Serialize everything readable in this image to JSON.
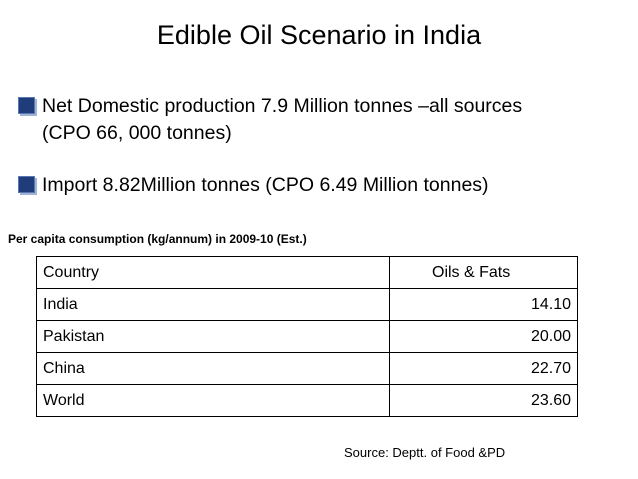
{
  "title": "Edible Oil Scenario in India",
  "bullets": [
    {
      "icon": "square-bullet-icon",
      "line1": "Net Domestic production 7.9 Million tonnes –all sources",
      "line2": "(CPO 66, 000 tonnes)"
    },
    {
      "icon": "square-bullet-icon",
      "line1": "Import 8.82Million tonnes (CPO 6.49 Million tonnes)"
    }
  ],
  "table": {
    "caption": "Per capita consumption (kg/annum) in 2009-10 (Est.)",
    "headers": [
      "Country",
      "Oils & Fats"
    ],
    "rows": [
      [
        "India",
        "14.10"
      ],
      [
        "Pakistan",
        "20.00"
      ],
      [
        "China",
        "22.70"
      ],
      [
        "World",
        "23.60"
      ]
    ]
  },
  "source": "Source: Deptt. of Food &PD",
  "colors": {
    "bullet": "#1f3d7a"
  }
}
